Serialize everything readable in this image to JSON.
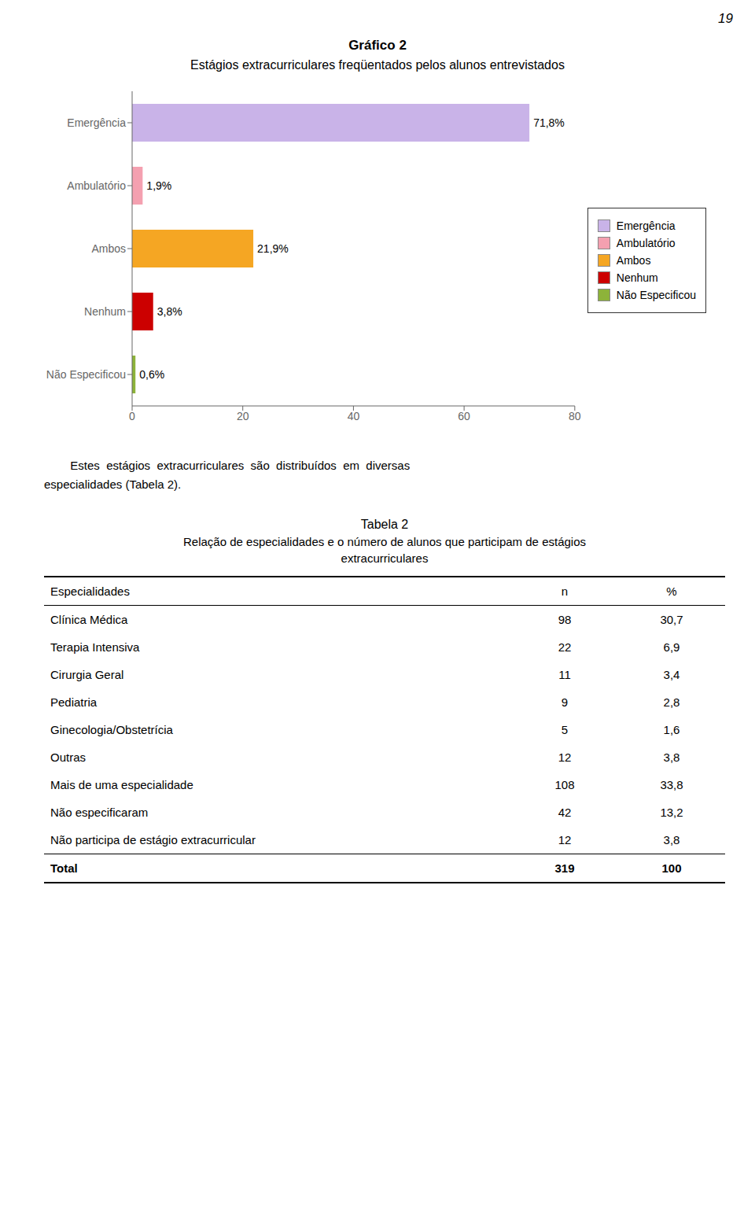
{
  "chart_data": [
    {
      "type": "bar",
      "orientation": "horizontal",
      "title": "Gráfico 2",
      "subtitle": "Estágios extracurriculares freqüentados pelos alunos entrevistados",
      "categories": [
        "Emergência",
        "Ambulatório",
        "Ambos",
        "Nenhum",
        "Não Especificou"
      ],
      "values": [
        71.8,
        1.9,
        21.9,
        3.8,
        0.6
      ],
      "value_labels": [
        "71,8%",
        "1,9%",
        "21,9%",
        "3,8%",
        "0,6%"
      ],
      "data_labels": true,
      "colors": [
        "#c9b3e8",
        "#f4a0b0",
        "#f5a623",
        "#cc0000",
        "#8db33a"
      ],
      "xlim": [
        0,
        80
      ],
      "xticks": [
        0,
        20,
        40,
        60,
        80
      ],
      "grid": false,
      "legend": "right",
      "annotations": [
        "19"
      ]
    },
    {
      "type": "table",
      "title": "Tabela 2",
      "subtitle": "Relação de especialidades e o número de alunos que participam de estágios\nextracurriculares",
      "annotations": [
        "        Estes  estágios  extracurriculares  são  distribuídos  em  diversas",
        "especialidades (Tabela 2)."
      ],
      "ylabel": "Especialidades",
      "categories": [
        "Clínica Médica",
        "Terapia Intensiva",
        "Cirurgia Geral",
        "Pediatria",
        "Ginecologia/Obstetrícia",
        "Outras",
        "Mais de uma especialidade",
        "Não especificaram",
        "Não participa de estágio extracurricular",
        "Total"
      ],
      "series": [
        {
          "name": "n",
          "values": [
            98,
            22,
            11,
            9,
            5,
            12,
            108,
            42,
            12,
            319
          ]
        },
        {
          "name": "%",
          "values": [
            30.7,
            6.9,
            3.4,
            2.8,
            1.6,
            3.8,
            33.8,
            13.2,
            3.8,
            100
          ],
          "value_labels": [
            "30,7",
            "6,9",
            "3,4",
            "2,8",
            "1,6",
            "3,8",
            "33,8",
            "13,2",
            "3,8",
            "100"
          ]
        }
      ]
    }
  ]
}
